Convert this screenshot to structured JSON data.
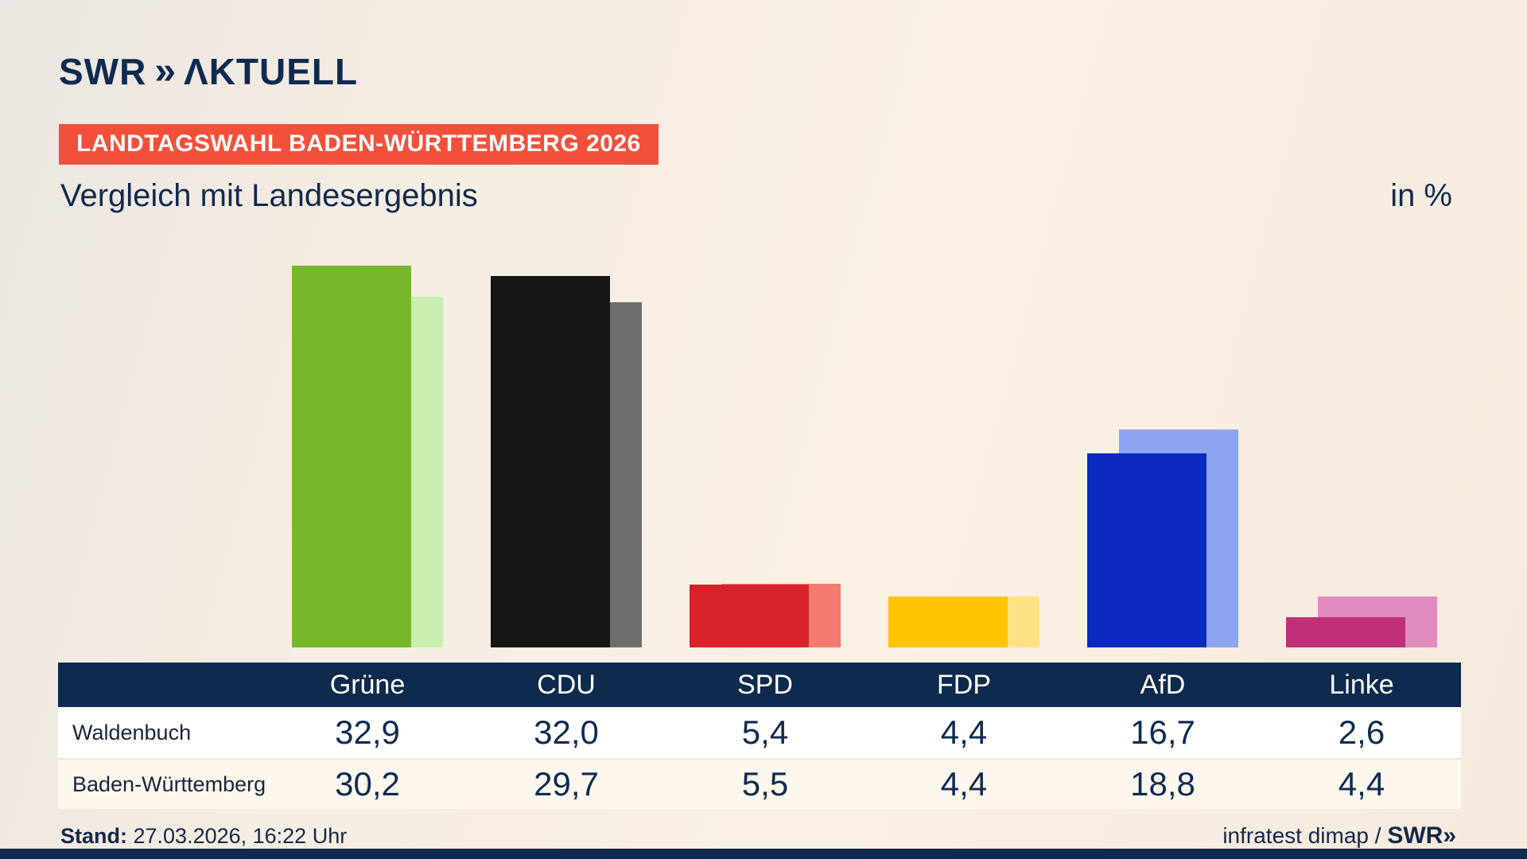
{
  "brand": {
    "swr": "SWR",
    "chevron": "»",
    "aktuell": "ΛKTUELL"
  },
  "header": {
    "badge": "LANDTAGSWAHL BADEN-WÜRTTEMBERG 2026",
    "title": "Vergleich mit Landesergebnis",
    "unit": "in %"
  },
  "chart_data": {
    "type": "bar",
    "title": "Vergleich mit Landesergebnis",
    "unit": "%",
    "categories": [
      "Grüne",
      "CDU",
      "SPD",
      "FDP",
      "AfD",
      "Linke"
    ],
    "series": [
      {
        "name": "Waldenbuch",
        "values": [
          32.9,
          32.0,
          5.4,
          4.4,
          16.7,
          2.6
        ]
      },
      {
        "name": "Baden-Württemberg",
        "values": [
          30.2,
          29.7,
          5.5,
          4.4,
          18.8,
          4.4
        ]
      }
    ],
    "colors": {
      "front": [
        "#76b82a",
        "#171614",
        "#d8232a",
        "#fdc500",
        "#0b2bc0",
        "#bf3079"
      ],
      "back": [
        "#c9eeb0",
        "#6f6d6b",
        "#f47b72",
        "#fce284",
        "#8ea4f0",
        "#e18cbe"
      ]
    },
    "ylim": [
      0,
      35
    ],
    "grid": false,
    "legend_position": "table-rows"
  },
  "table": {
    "header": [
      "Grüne",
      "CDU",
      "SPD",
      "FDP",
      "AfD",
      "Linke"
    ],
    "rows": [
      {
        "label": "Waldenbuch",
        "values": [
          "32,9",
          "32,0",
          "5,4",
          "4,4",
          "16,7",
          "2,6"
        ]
      },
      {
        "label": "Baden-Württemberg",
        "values": [
          "30,2",
          "29,7",
          "5,5",
          "4,4",
          "18,8",
          "4,4"
        ]
      }
    ]
  },
  "footer": {
    "stand_label": "Stand:",
    "stand_value": " 27.03.2026, 16:22 Uhr",
    "source": "infratest dimap / ",
    "source_brand": "SWR",
    "source_chevron": "»"
  }
}
